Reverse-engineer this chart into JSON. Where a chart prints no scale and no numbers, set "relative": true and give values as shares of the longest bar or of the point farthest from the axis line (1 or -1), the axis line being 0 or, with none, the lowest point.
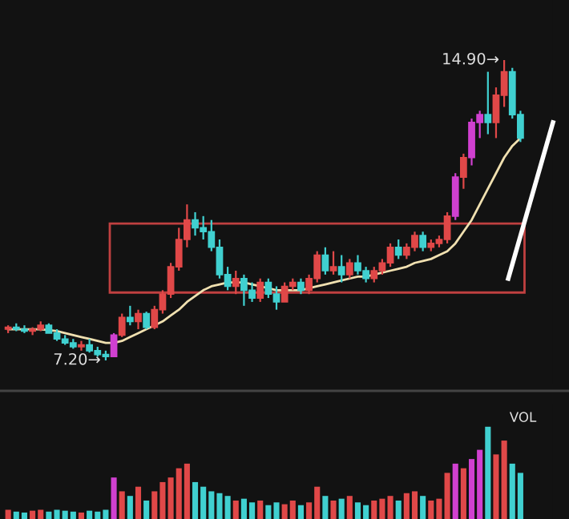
{
  "chart_data": [
    {
      "type": "candlestick",
      "tick_labels": false,
      "categories": [
        null,
        null,
        null,
        null,
        null,
        null,
        null,
        null,
        null,
        null,
        null,
        null,
        null,
        null,
        null,
        null,
        null,
        null,
        null,
        null,
        null,
        null,
        null,
        null,
        null,
        null,
        null,
        null,
        null,
        null,
        null,
        null,
        null,
        null,
        null,
        null,
        null,
        null,
        null,
        null,
        null,
        null,
        null,
        null,
        null,
        null,
        null,
        null,
        null,
        null,
        null,
        null,
        null,
        null,
        null,
        null,
        null,
        null,
        null,
        null,
        null,
        null,
        null,
        null
      ],
      "ohlc": [
        [
          8.0,
          8.1,
          7.9,
          8.05
        ],
        [
          8.05,
          8.15,
          7.95,
          8.0
        ],
        [
          8.0,
          8.1,
          7.9,
          7.95
        ],
        [
          7.95,
          8.05,
          7.85,
          8.0
        ],
        [
          8.0,
          8.2,
          7.95,
          8.1
        ],
        [
          8.1,
          8.15,
          7.9,
          7.9
        ],
        [
          7.9,
          8.0,
          7.7,
          7.75
        ],
        [
          7.75,
          7.85,
          7.6,
          7.65
        ],
        [
          7.65,
          7.75,
          7.5,
          7.55
        ],
        [
          7.55,
          7.7,
          7.45,
          7.6
        ],
        [
          7.6,
          7.75,
          7.4,
          7.45
        ],
        [
          7.45,
          7.55,
          7.3,
          7.35
        ],
        [
          7.35,
          7.45,
          7.2,
          7.3
        ],
        [
          7.3,
          7.9,
          7.3,
          7.85
        ],
        [
          7.85,
          8.4,
          7.8,
          8.3
        ],
        [
          8.3,
          8.6,
          8.1,
          8.2
        ],
        [
          8.2,
          8.5,
          8.0,
          8.4
        ],
        [
          8.4,
          8.45,
          8.0,
          8.05
        ],
        [
          8.05,
          8.6,
          8.0,
          8.5
        ],
        [
          8.5,
          9.0,
          8.4,
          8.9
        ],
        [
          8.9,
          9.7,
          8.8,
          9.6
        ],
        [
          9.6,
          10.6,
          9.5,
          10.3
        ],
        [
          10.3,
          11.2,
          10.1,
          10.8
        ],
        [
          10.8,
          11.0,
          10.4,
          10.6
        ],
        [
          10.6,
          10.9,
          10.3,
          10.5
        ],
        [
          10.5,
          10.8,
          10.0,
          10.1
        ],
        [
          10.1,
          10.3,
          9.3,
          9.4
        ],
        [
          9.4,
          9.6,
          9.0,
          9.1
        ],
        [
          9.1,
          9.5,
          8.9,
          9.3
        ],
        [
          9.3,
          9.4,
          8.6,
          9.0
        ],
        [
          9.0,
          9.2,
          8.7,
          8.8
        ],
        [
          8.8,
          9.3,
          8.7,
          9.2
        ],
        [
          9.2,
          9.3,
          8.8,
          8.9
        ],
        [
          8.9,
          9.1,
          8.5,
          8.7
        ],
        [
          8.7,
          9.2,
          8.7,
          9.1
        ],
        [
          9.1,
          9.3,
          9.0,
          9.2
        ],
        [
          9.2,
          9.3,
          8.9,
          9.0
        ],
        [
          9.0,
          9.4,
          8.9,
          9.3
        ],
        [
          9.3,
          10.0,
          9.2,
          9.9
        ],
        [
          9.9,
          10.1,
          9.4,
          9.5
        ],
        [
          9.5,
          10.0,
          9.4,
          9.6
        ],
        [
          9.6,
          9.9,
          9.2,
          9.4
        ],
        [
          9.4,
          9.8,
          9.3,
          9.7
        ],
        [
          9.7,
          9.9,
          9.4,
          9.5
        ],
        [
          9.5,
          9.6,
          9.2,
          9.3
        ],
        [
          9.3,
          9.6,
          9.2,
          9.5
        ],
        [
          9.5,
          9.8,
          9.4,
          9.7
        ],
        [
          9.7,
          10.2,
          9.6,
          10.1
        ],
        [
          10.1,
          10.3,
          9.8,
          9.9
        ],
        [
          9.9,
          10.2,
          9.8,
          10.1
        ],
        [
          10.1,
          10.5,
          10.0,
          10.4
        ],
        [
          10.4,
          10.5,
          10.0,
          10.1
        ],
        [
          10.1,
          10.3,
          10.0,
          10.2
        ],
        [
          10.2,
          10.4,
          10.1,
          10.3
        ],
        [
          10.3,
          11.0,
          10.2,
          10.9
        ],
        [
          10.9,
          12.0,
          10.8,
          11.9
        ],
        [
          11.9,
          12.5,
          11.6,
          12.4
        ],
        [
          12.4,
          13.4,
          12.2,
          13.3
        ],
        [
          13.3,
          13.6,
          12.9,
          13.5
        ],
        [
          13.5,
          14.6,
          13.0,
          13.3
        ],
        [
          13.3,
          14.2,
          12.9,
          14.0
        ],
        [
          14.0,
          14.9,
          13.7,
          14.6
        ],
        [
          14.6,
          14.7,
          13.4,
          13.5
        ],
        [
          13.5,
          13.6,
          12.8,
          12.9
        ]
      ],
      "colors": [
        "#e04848",
        "#40d0d0",
        "#40d0d0",
        "#e04848",
        "#e04848",
        "#40d0d0",
        "#40d0d0",
        "#40d0d0",
        "#40d0d0",
        "#e04848",
        "#40d0d0",
        "#40d0d0",
        "#40d0d0",
        "#d040d0",
        "#e04848",
        "#40d0d0",
        "#e04848",
        "#40d0d0",
        "#e04848",
        "#e04848",
        "#e04848",
        "#e04848",
        "#e04848",
        "#40d0d0",
        "#40d0d0",
        "#40d0d0",
        "#40d0d0",
        "#40d0d0",
        "#e04848",
        "#40d0d0",
        "#40d0d0",
        "#e04848",
        "#40d0d0",
        "#40d0d0",
        "#e04848",
        "#e04848",
        "#40d0d0",
        "#e04848",
        "#e04848",
        "#40d0d0",
        "#e04848",
        "#40d0d0",
        "#e04848",
        "#40d0d0",
        "#40d0d0",
        "#e04848",
        "#e04848",
        "#e04848",
        "#40d0d0",
        "#e04848",
        "#e04848",
        "#40d0d0",
        "#e04848",
        "#e04848",
        "#e04848",
        "#d040d0",
        "#e04848",
        "#d040d0",
        "#d040d0",
        "#40d0d0",
        "#e04848",
        "#e04848",
        "#40d0d0",
        "#40d0d0"
      ],
      "series": [
        {
          "type": "line",
          "color": "#f0e0b0",
          "values": [
            8.0,
            8.0,
            8.0,
            8.0,
            8.0,
            7.98,
            7.95,
            7.9,
            7.85,
            7.8,
            7.75,
            7.7,
            7.65,
            7.65,
            7.7,
            7.8,
            7.9,
            8.0,
            8.1,
            8.2,
            8.35,
            8.5,
            8.7,
            8.85,
            9.0,
            9.1,
            9.15,
            9.2,
            9.2,
            9.2,
            9.15,
            9.1,
            9.05,
            9.0,
            9.0,
            9.0,
            9.0,
            9.05,
            9.1,
            9.15,
            9.2,
            9.25,
            9.3,
            9.35,
            9.35,
            9.4,
            9.45,
            9.5,
            9.55,
            9.6,
            9.7,
            9.75,
            9.8,
            9.9,
            10.0,
            10.2,
            10.5,
            10.8,
            11.2,
            11.6,
            12.0,
            12.4,
            12.7,
            12.9
          ]
        }
      ],
      "annotations": [
        "14.90→",
        "7.20→"
      ]
    },
    {
      "type": "bar",
      "relative": true,
      "tick_labels": false,
      "title": "VOL",
      "categories": [
        null,
        null,
        null,
        null,
        null,
        null,
        null,
        null,
        null,
        null,
        null,
        null,
        null,
        null,
        null,
        null,
        null,
        null,
        null,
        null,
        null,
        null,
        null,
        null,
        null,
        null,
        null,
        null,
        null,
        null,
        null,
        null,
        null,
        null,
        null,
        null,
        null,
        null,
        null,
        null,
        null,
        null,
        null,
        null,
        null,
        null,
        null,
        null,
        null,
        null,
        null,
        null,
        null,
        null,
        null,
        null,
        null,
        null,
        null,
        null,
        null,
        null,
        null,
        null
      ],
      "values": [
        0.1,
        0.08,
        0.07,
        0.09,
        0.1,
        0.08,
        0.1,
        0.09,
        0.08,
        0.07,
        0.09,
        0.08,
        0.1,
        0.45,
        0.3,
        0.25,
        0.35,
        0.2,
        0.3,
        0.4,
        0.45,
        0.55,
        0.6,
        0.4,
        0.35,
        0.3,
        0.28,
        0.25,
        0.2,
        0.22,
        0.18,
        0.2,
        0.15,
        0.18,
        0.16,
        0.2,
        0.15,
        0.18,
        0.35,
        0.25,
        0.2,
        0.22,
        0.25,
        0.18,
        0.15,
        0.2,
        0.22,
        0.25,
        0.2,
        0.28,
        0.3,
        0.25,
        0.2,
        0.22,
        0.5,
        0.6,
        0.55,
        0.65,
        0.75,
        1.0,
        0.7,
        0.85,
        0.6,
        0.5
      ],
      "colors": [
        "#e04848",
        "#40d0d0",
        "#40d0d0",
        "#e04848",
        "#e04848",
        "#40d0d0",
        "#40d0d0",
        "#40d0d0",
        "#40d0d0",
        "#e04848",
        "#40d0d0",
        "#40d0d0",
        "#40d0d0",
        "#d040d0",
        "#e04848",
        "#40d0d0",
        "#e04848",
        "#40d0d0",
        "#e04848",
        "#e04848",
        "#e04848",
        "#e04848",
        "#e04848",
        "#40d0d0",
        "#40d0d0",
        "#40d0d0",
        "#40d0d0",
        "#40d0d0",
        "#e04848",
        "#40d0d0",
        "#40d0d0",
        "#e04848",
        "#40d0d0",
        "#40d0d0",
        "#e04848",
        "#e04848",
        "#40d0d0",
        "#e04848",
        "#e04848",
        "#40d0d0",
        "#e04848",
        "#40d0d0",
        "#e04848",
        "#40d0d0",
        "#40d0d0",
        "#e04848",
        "#e04848",
        "#e04848",
        "#40d0d0",
        "#e04848",
        "#e04848",
        "#40d0d0",
        "#e04848",
        "#e04848",
        "#e04848",
        "#d040d0",
        "#e04848",
        "#d040d0",
        "#d040d0",
        "#40d0d0",
        "#e04848",
        "#e04848",
        "#40d0d0",
        "#40d0d0"
      ]
    }
  ]
}
